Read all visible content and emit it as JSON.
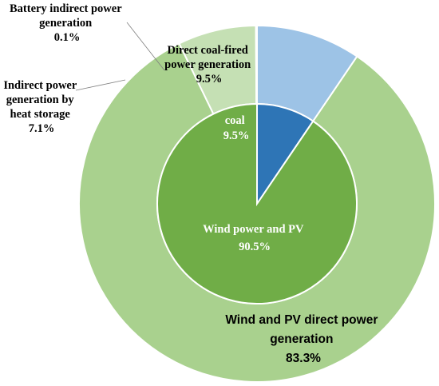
{
  "chart_data": {
    "type": "pie",
    "title": "",
    "rings": [
      {
        "ring": "outer",
        "slices": [
          {
            "label": "Direct coal-fired power generation",
            "value": 9.5,
            "display": "9.5%",
            "color": "#9dc3e6"
          },
          {
            "label": "Wind and PV direct power generation",
            "value": 83.3,
            "display": "83.3%",
            "color": "#a9d18e"
          },
          {
            "label": "Indirect power generation by heat storage",
            "value": 7.1,
            "display": "7.1%",
            "color": "#c5e0b4"
          },
          {
            "label": "Battery indirect power generation",
            "value": 0.1,
            "display": "0.1%",
            "color": "#a9d18e"
          }
        ]
      },
      {
        "ring": "inner",
        "slices": [
          {
            "label": "coal",
            "value": 9.5,
            "display": "9.5%",
            "color": "#2e75b6"
          },
          {
            "label": "Wind power and PV",
            "value": 90.5,
            "display": "90.5%",
            "color": "#70ad47"
          }
        ]
      }
    ],
    "legend": "none"
  },
  "labels": {
    "battery": [
      "Battery indirect power",
      "generation",
      "0.1%"
    ],
    "heat": [
      "Indirect power",
      "generation by",
      "heat storage",
      "7.1%"
    ],
    "direct_coal": [
      "Direct coal-fired",
      "power generation",
      "9.5%"
    ],
    "coal": [
      "coal",
      "9.5%"
    ],
    "wind_pv": [
      "Wind power and PV",
      "90.5%"
    ],
    "wind_direct": [
      "Wind and PV direct power",
      "generation",
      "83.3%"
    ]
  }
}
